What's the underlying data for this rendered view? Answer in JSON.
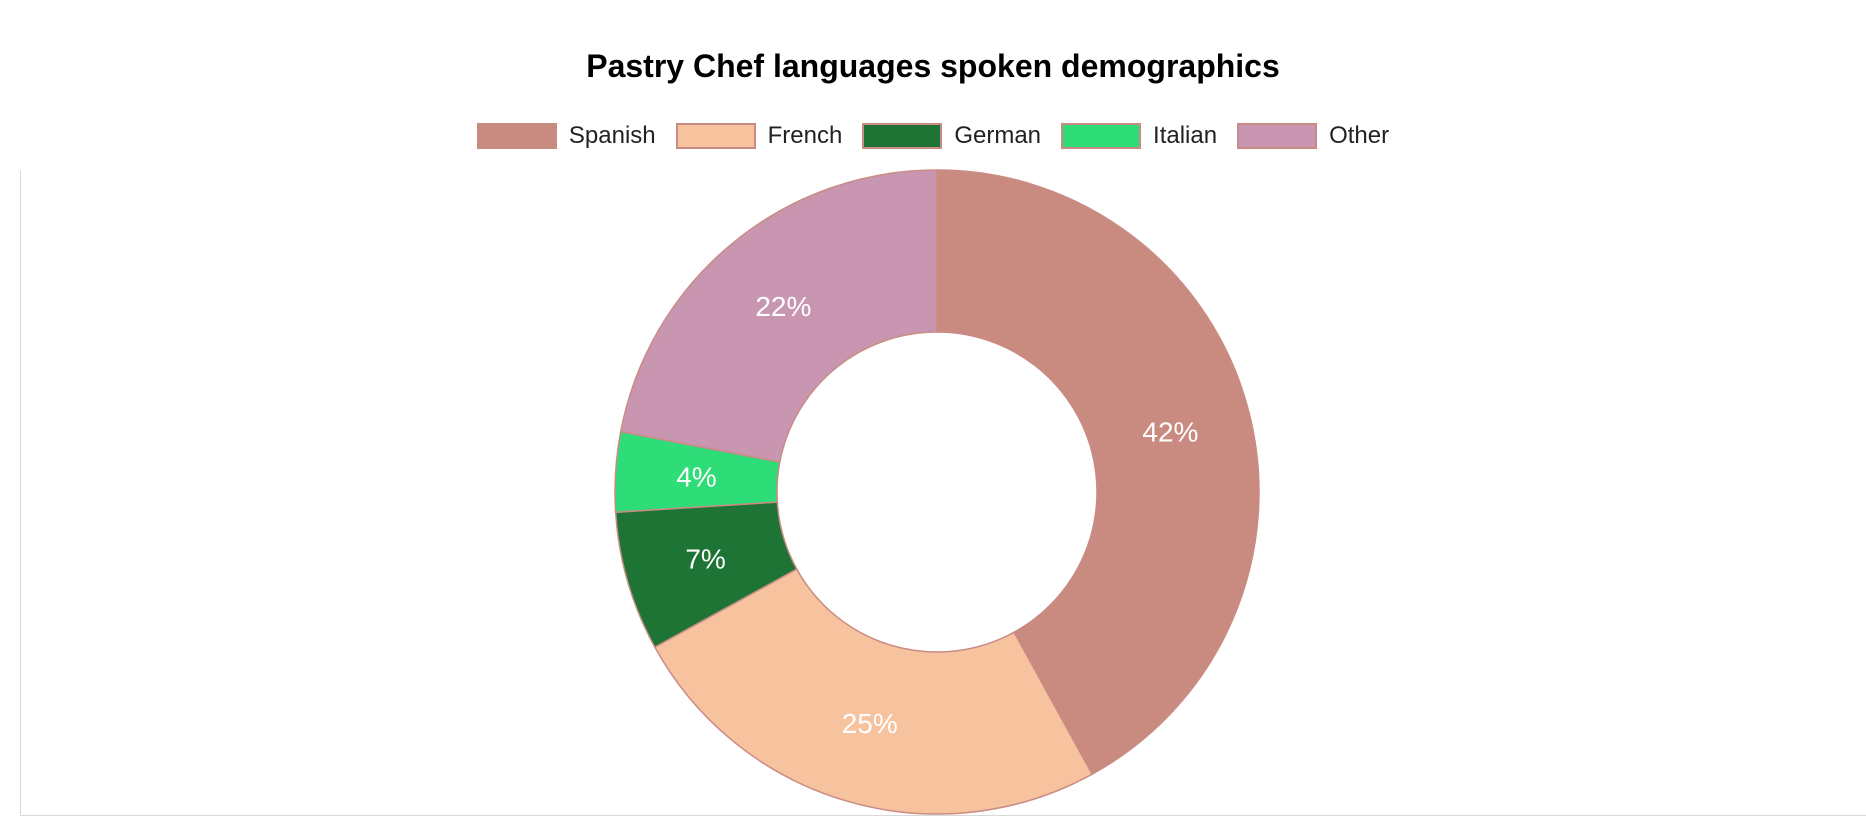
{
  "chart_data": {
    "type": "pie",
    "variant": "donut",
    "title": "Pastry Chef languages spoken demographics",
    "categories": [
      "Spanish",
      "French",
      "German",
      "Italian",
      "Other"
    ],
    "values": [
      42,
      25,
      7,
      4,
      22
    ],
    "value_labels": [
      "42%",
      "25%",
      "7%",
      "4%",
      "22%"
    ],
    "colors": [
      "#c98a80",
      "#f7c29e",
      "#1d7434",
      "#2edc78",
      "#c896b0"
    ],
    "slice_border_color": "#c98c84",
    "legend_position": "top-center"
  }
}
